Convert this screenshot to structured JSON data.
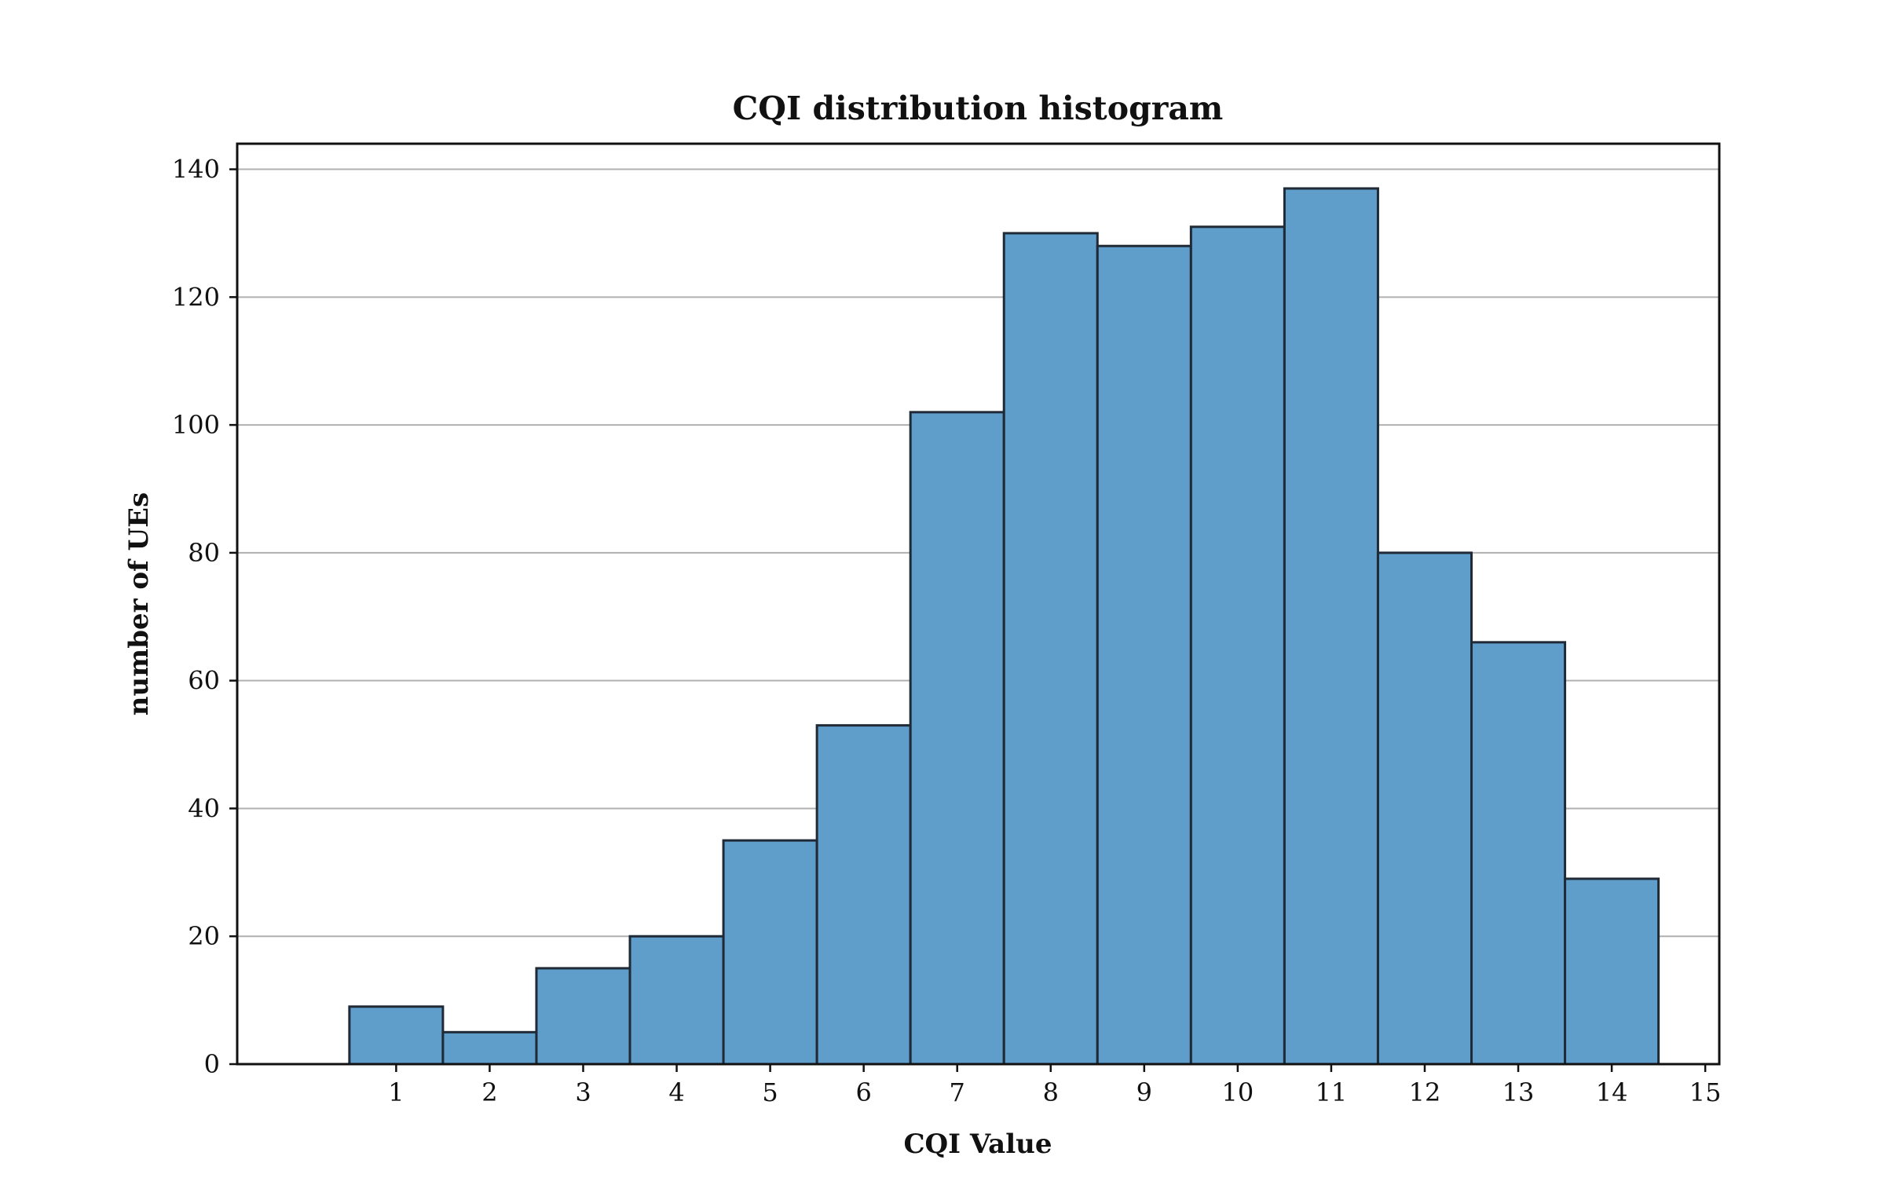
{
  "chart_data": {
    "type": "bar",
    "title": "CQI distribution histogram",
    "xlabel": "CQI Value",
    "ylabel": "number of UEs",
    "categories": [
      "1",
      "2",
      "3",
      "4",
      "5",
      "6",
      "7",
      "8",
      "9",
      "10",
      "11",
      "12",
      "13",
      "14"
    ],
    "values": [
      9,
      5,
      15,
      20,
      35,
      53,
      102,
      130,
      128,
      131,
      137,
      80,
      66,
      29
    ],
    "xlim": [
      -0.7,
      15.15
    ],
    "ylim": [
      0,
      144
    ],
    "xticks": [
      1,
      2,
      3,
      4,
      5,
      6,
      7,
      8,
      9,
      10,
      11,
      12,
      13,
      14,
      15
    ],
    "yticks": [
      0,
      20,
      40,
      60,
      80,
      100,
      120,
      140
    ],
    "bin_width": 1,
    "grid": "y",
    "bar_color": "#5f9dca",
    "edge_color": "#1f2a36",
    "grid_color": "#b0b0b0"
  }
}
